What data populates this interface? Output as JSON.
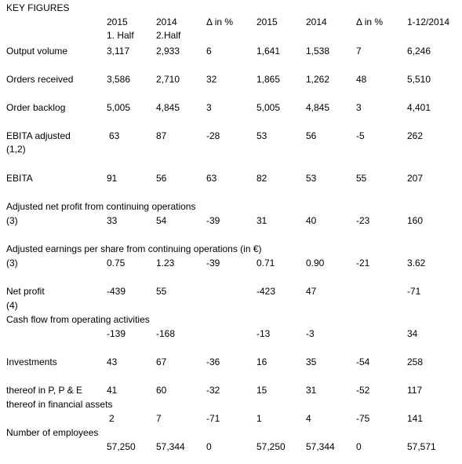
{
  "title": "KEY FIGURES",
  "headers": {
    "c1": [
      "2015",
      "1. Half"
    ],
    "c2": [
      "2014",
      "2.Half"
    ],
    "c3": [
      "Δ in %"
    ],
    "c4": [
      "2015"
    ],
    "c5": [
      "2014"
    ],
    "c6": [
      "Δ in %"
    ],
    "c7": [
      "1-12/2014"
    ]
  },
  "rows": [
    {
      "id": "output-volume",
      "label": "Output volume",
      "values": [
        "3,117",
        "2,933",
        "6",
        "1,641",
        "1,538",
        "7",
        "6,246"
      ]
    },
    {
      "id": "orders-received",
      "label": "Orders received",
      "values": [
        "3,586",
        "2,710",
        "32",
        "1,865",
        "1,262",
        "48",
        "5,510"
      ]
    },
    {
      "id": "order-backlog",
      "label": "Order backlog",
      "values": [
        "5,005",
        "4,845",
        "3",
        "5,005",
        "4,845",
        "3",
        "4,401"
      ]
    },
    {
      "id": "ebita-adjusted",
      "label": "EBITA adjusted",
      "sub": "(1,2)",
      "values": [
        "63",
        "87",
        "-28",
        "53",
        "56",
        "-5",
        "262"
      ]
    },
    {
      "id": "ebita",
      "label": "EBITA",
      "values": [
        "91",
        "56",
        "63",
        "82",
        "53",
        "55",
        "207"
      ]
    },
    {
      "id": "adjusted-net-profit",
      "label": "Adjusted net profit from continuing operations",
      "sub": "(3)",
      "values": [
        "33",
        "54",
        "-39",
        "31",
        "40",
        "-23",
        "160"
      ]
    },
    {
      "id": "adjusted-eps",
      "label": "Adjusted earnings per share from continuing operations  (in €)",
      "sub": "(3)",
      "values": [
        "0.75",
        "1.23",
        "-39",
        "0.71",
        "0.90",
        "-21",
        "3.62"
      ]
    },
    {
      "id": "net-profit",
      "label": "Net profit",
      "sub": "(4)",
      "values": [
        "-439",
        "55",
        "",
        "-423",
        "47",
        "",
        "-71"
      ]
    },
    {
      "id": "cash-flow",
      "label": "Cash flow from operating activities",
      "values": [
        "-139",
        "-168",
        "",
        "-13",
        "-3",
        "",
        "34"
      ]
    },
    {
      "id": "investments",
      "label": "Investments",
      "values": [
        "43",
        "67",
        "-36",
        "16",
        "35",
        "-54",
        "258"
      ]
    },
    {
      "id": "thereof-ppe",
      "label": "thereof in  P, P & E",
      "values": [
        "41",
        "60",
        "-32",
        "15",
        "31",
        "-52",
        "117"
      ]
    },
    {
      "id": "thereof-financial",
      "label": "thereof in  financial assets",
      "values": [
        "2",
        "7",
        "-71",
        "1",
        "4",
        "-75",
        "141"
      ]
    },
    {
      "id": "employees",
      "label": "Number of employees",
      "values": [
        "57,250",
        "57,344",
        "0",
        "57,250",
        "57,344",
        "0",
        "57,571"
      ]
    }
  ]
}
